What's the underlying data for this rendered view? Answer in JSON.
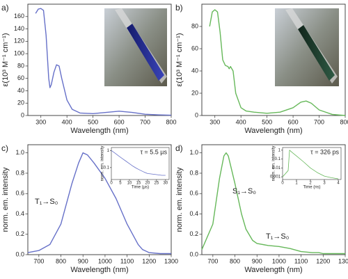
{
  "chart_data": [
    {
      "type": "line",
      "panel": "a)",
      "xlabel": "Wavelength (nm)",
      "ylabel": "ε(10³ M⁻¹ cm⁻¹)",
      "color": "#6670c8",
      "xlim": [
        250,
        800
      ],
      "xticks": [
        300,
        400,
        500,
        600,
        700,
        800
      ],
      "ylim": [
        0,
        180
      ],
      "yticks": [
        0,
        20,
        40,
        60,
        80,
        100,
        120,
        140,
        160
      ],
      "x": [
        280,
        290,
        300,
        310,
        320,
        330,
        335,
        340,
        350,
        360,
        370,
        380,
        400,
        420,
        450,
        500,
        550,
        600,
        650,
        700,
        750,
        800
      ],
      "values": [
        165,
        172,
        173,
        170,
        130,
        60,
        45,
        50,
        70,
        82,
        80,
        60,
        25,
        10,
        4,
        3,
        5,
        7,
        5,
        2,
        1,
        0.5
      ]
    },
    {
      "type": "line",
      "panel": "b)",
      "xlabel": "Wavelength (nm)",
      "ylabel": "ε(10³ M⁻¹ cm⁻¹)",
      "color": "#66b85a",
      "xlim": [
        250,
        800
      ],
      "xticks": [
        300,
        400,
        500,
        600,
        700,
        800
      ],
      "ylim": [
        0,
        100
      ],
      "yticks": [
        0,
        20,
        40,
        60,
        80
      ],
      "x": [
        280,
        290,
        300,
        310,
        320,
        330,
        340,
        350,
        355,
        360,
        370,
        380,
        400,
        420,
        450,
        500,
        550,
        600,
        630,
        650,
        670,
        700,
        750,
        800
      ],
      "values": [
        80,
        93,
        95,
        93,
        75,
        50,
        45,
        44,
        42,
        44,
        40,
        20,
        7,
        4,
        3,
        2,
        3,
        7,
        12,
        13,
        11,
        5,
        1,
        0
      ]
    },
    {
      "type": "line",
      "panel": "c)",
      "xlabel": "Wavelength (nm)",
      "ylabel": "norm. em. intensity",
      "color": "#6670c8",
      "xlim": [
        650,
        1300
      ],
      "xticks": [
        700,
        800,
        900,
        1000,
        1100,
        1200,
        1300
      ],
      "ylim": [
        0,
        1.08
      ],
      "yticks": [
        {
          "value": 0,
          "label": "0.0"
        },
        0.2,
        0.4,
        0.6,
        0.8,
        {
          "value": 1,
          "label": "1.0"
        }
      ],
      "x": [
        650,
        700,
        750,
        800,
        850,
        880,
        900,
        920,
        950,
        1000,
        1050,
        1100,
        1150,
        1170,
        1180,
        1200,
        1250,
        1300
      ],
      "values": [
        0.02,
        0.04,
        0.1,
        0.3,
        0.7,
        0.9,
        1.0,
        0.98,
        0.9,
        0.75,
        0.55,
        0.3,
        0.1,
        0.05,
        0.04,
        0.02,
        0.01,
        0.01
      ],
      "annotations": [
        "T₁→S₀"
      ],
      "inset": {
        "type": "line",
        "log_y": true,
        "annotation": "τ = 5.5 µs",
        "xlabel": "Time (µs)",
        "ylabel": "norm. em. intensity",
        "color": "#6670c8",
        "xlim": [
          0,
          32
        ],
        "xticks": [
          0,
          5,
          10,
          15,
          20,
          25,
          30
        ],
        "ylim": [
          0.02,
          1.5
        ],
        "yticks": [
          0.1,
          1
        ],
        "x": [
          0,
          2,
          4,
          6,
          8,
          10,
          12,
          14,
          16,
          18,
          20,
          24,
          28,
          30
        ],
        "values": [
          1,
          0.7,
          0.48,
          0.34,
          0.24,
          0.17,
          0.12,
          0.09,
          0.07,
          0.055,
          0.045,
          0.04,
          0.035,
          0.035
        ]
      }
    },
    {
      "type": "line",
      "panel": "d)",
      "xlabel": "Wavelength (nm)",
      "ylabel": "norm. em. intensity",
      "color": "#66b85a",
      "xlim": [
        650,
        1300
      ],
      "xticks": [
        700,
        800,
        900,
        1000,
        1100,
        1200,
        1300
      ],
      "ylim": [
        0,
        1.08
      ],
      "yticks": [
        {
          "value": 0,
          "label": "0.0"
        },
        0.2,
        0.4,
        0.6,
        0.8,
        {
          "value": 1,
          "label": "1.0"
        }
      ],
      "x": [
        650,
        700,
        730,
        750,
        760,
        770,
        800,
        830,
        850,
        880,
        900,
        950,
        1000,
        1050,
        1100,
        1150,
        1180,
        1200,
        1300
      ],
      "values": [
        0.05,
        0.3,
        0.75,
        0.97,
        1.0,
        0.97,
        0.7,
        0.4,
        0.25,
        0.14,
        0.11,
        0.09,
        0.08,
        0.06,
        0.03,
        0.02,
        0.02,
        0.01,
        0.01
      ],
      "annotations": [
        "S₁→S₀",
        "T₁→S₀"
      ],
      "inset": {
        "type": "line",
        "log_y": true,
        "annotation": "τ = 326 ps",
        "xlabel": "Time (ns)",
        "ylabel": "norm. em. intensity",
        "color": "#66b85a",
        "xlim": [
          0,
          4.2
        ],
        "xticks": [
          0,
          1,
          2,
          3,
          4
        ],
        "ylim": [
          0.0005,
          2
        ],
        "yticks": [
          0.001,
          0.01,
          0.1,
          1
        ],
        "x": [
          0,
          0.4,
          0.5,
          0.7,
          1,
          1.5,
          2,
          2.5,
          3,
          3.5,
          4
        ],
        "values": [
          0.001,
          0.005,
          1,
          0.54,
          0.22,
          0.05,
          0.01,
          0.003,
          0.0012,
          0.0008,
          0.0006
        ]
      }
    }
  ]
}
